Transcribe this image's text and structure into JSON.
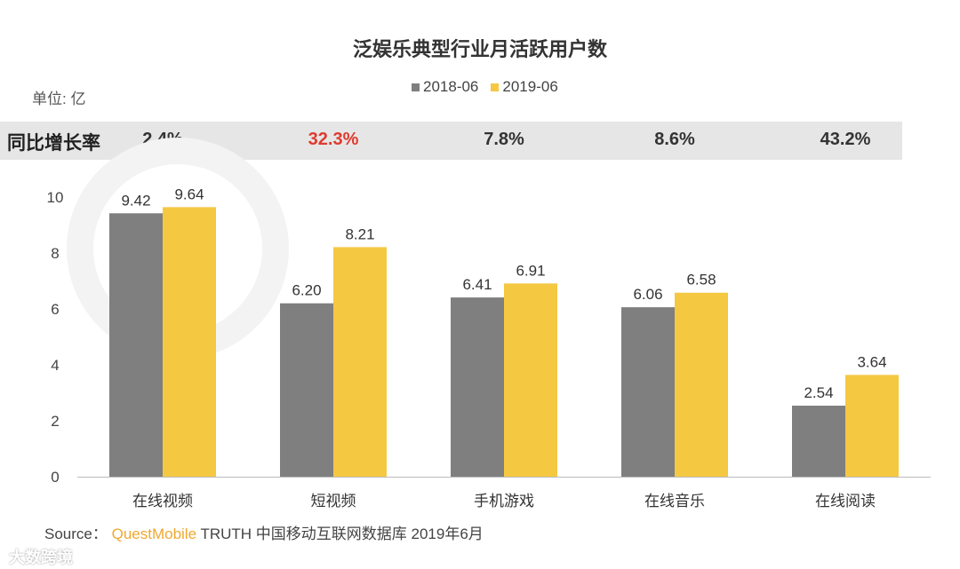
{
  "chart_data": {
    "type": "bar",
    "title": "泛娱乐典型行业月活跃用户数",
    "unit_label": "单位: 亿",
    "categories": [
      "在线视频",
      "短视频",
      "手机游戏",
      "在线音乐",
      "在线阅读"
    ],
    "series": [
      {
        "name": "2018-06",
        "values": [
          9.42,
          6.2,
          6.41,
          6.06,
          2.54
        ],
        "labels": [
          "9.42",
          "6.20",
          "6.41",
          "6.06",
          "2.54"
        ],
        "color": "#7f7f7f"
      },
      {
        "name": "2019-06",
        "values": [
          9.64,
          8.21,
          6.91,
          6.58,
          3.64
        ],
        "labels": [
          "9.64",
          "8.21",
          "6.91",
          "6.58",
          "3.64"
        ],
        "color": "#f5c842"
      }
    ],
    "ylim": [
      0,
      10
    ],
    "yticks": [
      "0",
      "2",
      "4",
      "6",
      "8",
      "10"
    ],
    "grid": false,
    "legend": "top-center"
  },
  "growth_row": {
    "label": "同比增长率",
    "values": [
      "2.4%",
      "32.3%",
      "7.8%",
      "8.6%",
      "43.2%"
    ],
    "highlight_color": "#e03a2f",
    "highlight_index": 1
  },
  "source": {
    "prefix": "Source：",
    "brand": "QuestMobile",
    "text": "TRUTH 中国移动互联网数据库 2019年6月"
  },
  "watermarks": {
    "logo": "QUEST MOBILE",
    "corner": "大数跨境"
  }
}
